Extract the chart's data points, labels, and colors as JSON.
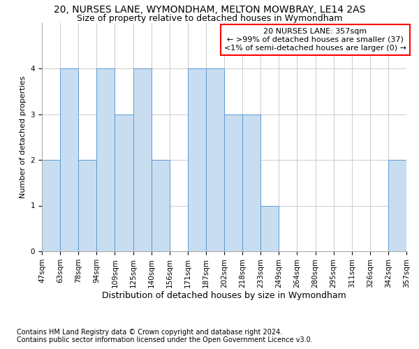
{
  "title1": "20, NURSES LANE, WYMONDHAM, MELTON MOWBRAY, LE14 2AS",
  "title2": "Size of property relative to detached houses in Wymondham",
  "xlabel": "Distribution of detached houses by size in Wymondham",
  "ylabel": "Number of detached properties",
  "footnote": "Contains HM Land Registry data © Crown copyright and database right 2024.\nContains public sector information licensed under the Open Government Licence v3.0.",
  "bin_labels": [
    "47sqm",
    "63sqm",
    "78sqm",
    "94sqm",
    "109sqm",
    "125sqm",
    "140sqm",
    "156sqm",
    "171sqm",
    "187sqm",
    "202sqm",
    "218sqm",
    "233sqm",
    "249sqm",
    "264sqm",
    "280sqm",
    "295sqm",
    "311sqm",
    "326sqm",
    "342sqm",
    "357sqm"
  ],
  "bar_values": [
    2,
    4,
    2,
    4,
    3,
    4,
    2,
    0,
    4,
    4,
    3,
    3,
    1,
    0,
    0,
    0,
    0,
    0,
    0,
    2
  ],
  "bar_color": "#c9ddf0",
  "bar_edge_color": "#5b9bd5",
  "annotation_text": "20 NURSES LANE: 357sqm\n← >99% of detached houses are smaller (37)\n<1% of semi-detached houses are larger (0) →",
  "annotation_box_color": "#ffffff",
  "annotation_box_edge": "#ff0000",
  "ylim": [
    0,
    5
  ],
  "yticks": [
    0,
    1,
    2,
    3,
    4
  ],
  "grid_color": "#cccccc",
  "background_color": "#ffffff",
  "title1_fontsize": 10,
  "title2_fontsize": 9,
  "xlabel_fontsize": 9,
  "ylabel_fontsize": 8,
  "tick_fontsize": 7.5,
  "annot_fontsize": 8
}
